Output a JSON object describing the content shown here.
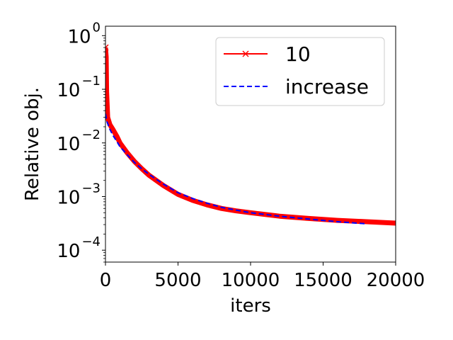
{
  "chart_data": {
    "type": "line",
    "title": "",
    "xlabel": "iters",
    "ylabel": "Relative obj.",
    "xlim": [
      0,
      20000
    ],
    "ylim": [
      6e-05,
      1.5
    ],
    "yscale": "log",
    "xticks": [
      0,
      5000,
      10000,
      15000,
      20000
    ],
    "xtick_labels": [
      "0",
      "5000",
      "10000",
      "15000",
      "20000"
    ],
    "yticks": [
      0.0001,
      0.001,
      0.01,
      0.1,
      1
    ],
    "ytick_labels": [
      {
        "base": "10",
        "exp": "−4"
      },
      {
        "base": "10",
        "exp": "−3"
      },
      {
        "base": "10",
        "exp": "−2"
      },
      {
        "base": "10",
        "exp": "−1"
      },
      {
        "base": "10",
        "exp": "0"
      }
    ],
    "legend_position": "top-right",
    "grid": false,
    "series": [
      {
        "name": "10",
        "color": "#ff0000",
        "style": "solid-thick",
        "marker": "x",
        "x": [
          0,
          50,
          80,
          150,
          300,
          500,
          800,
          1000,
          1500,
          2000,
          2500,
          3000,
          4000,
          5000,
          6000,
          7000,
          8000,
          9000,
          10000,
          12000,
          14000,
          16000,
          18000,
          20000
        ],
        "y": [
          0.6,
          0.4,
          0.09,
          0.03,
          0.022,
          0.018,
          0.013,
          0.01,
          0.0065,
          0.0045,
          0.0033,
          0.0025,
          0.0016,
          0.0011,
          0.00085,
          0.0007,
          0.0006,
          0.00054,
          0.0005,
          0.00043,
          0.00039,
          0.00036,
          0.00034,
          0.00032
        ]
      },
      {
        "name": "increase",
        "color": "#0000ff",
        "style": "dashed",
        "x": [
          0,
          100,
          300,
          500,
          800,
          1000,
          1500,
          2000,
          2500,
          3000,
          4000,
          5000,
          6000,
          7000,
          8000,
          9000,
          10000,
          12000,
          14000,
          16000,
          18000
        ],
        "y": [
          0.035,
          0.025,
          0.018,
          0.014,
          0.0105,
          0.0085,
          0.006,
          0.0043,
          0.0033,
          0.0026,
          0.0017,
          0.00118,
          0.00092,
          0.00075,
          0.00063,
          0.00056,
          0.0005,
          0.00043,
          0.00038,
          0.00034,
          0.00031
        ]
      }
    ]
  }
}
